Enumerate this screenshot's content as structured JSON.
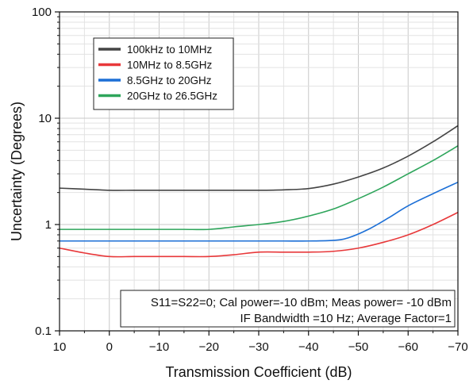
{
  "chart_data": {
    "type": "line",
    "title": "",
    "xlabel": "Transmission Coefficient (dB)",
    "ylabel": "Uncertainty (Degrees)",
    "x_scale": "linear",
    "x_reversed": true,
    "xlim": [
      10,
      -70
    ],
    "x_ticks": [
      10,
      0,
      -10,
      -20,
      -30,
      -40,
      -50,
      -60,
      -70
    ],
    "x_tick_labels": [
      "10",
      "0",
      "−10",
      "−20",
      "−30",
      "−40",
      "−50",
      "−60",
      "−70"
    ],
    "y_scale": "log",
    "ylim": [
      0.1,
      100
    ],
    "y_ticks": [
      0.1,
      1,
      10,
      100
    ],
    "y_tick_labels": [
      "0.1",
      "1",
      "10",
      "100"
    ],
    "grid": true,
    "legend_position": "top-left",
    "series": [
      {
        "name": "100kHz to 10MHz",
        "color": "#444444",
        "x": [
          10,
          5,
          0,
          -5,
          -10,
          -15,
          -20,
          -25,
          -30,
          -35,
          -40,
          -45,
          -50,
          -55,
          -60,
          -65,
          -70
        ],
        "y": [
          2.2,
          2.15,
          2.1,
          2.1,
          2.1,
          2.1,
          2.1,
          2.1,
          2.1,
          2.12,
          2.18,
          2.4,
          2.8,
          3.4,
          4.4,
          6.0,
          8.5
        ]
      },
      {
        "name": "10MHz to 8.5GHz",
        "color": "#e8383a",
        "x": [
          10,
          5,
          0,
          -5,
          -10,
          -15,
          -20,
          -25,
          -30,
          -35,
          -40,
          -45,
          -50,
          -55,
          -60,
          -65,
          -70
        ],
        "y": [
          0.6,
          0.54,
          0.5,
          0.5,
          0.5,
          0.5,
          0.5,
          0.52,
          0.55,
          0.55,
          0.55,
          0.56,
          0.6,
          0.68,
          0.8,
          1.0,
          1.3
        ]
      },
      {
        "name": "8.5GHz to 20GHz",
        "color": "#1c6fd6",
        "x": [
          10,
          5,
          0,
          -5,
          -10,
          -15,
          -20,
          -25,
          -30,
          -35,
          -40,
          -45,
          -48,
          -52,
          -56,
          -60,
          -65,
          -70
        ],
        "y": [
          0.7,
          0.7,
          0.7,
          0.7,
          0.7,
          0.7,
          0.7,
          0.7,
          0.7,
          0.7,
          0.7,
          0.71,
          0.75,
          0.9,
          1.15,
          1.5,
          1.95,
          2.5
        ]
      },
      {
        "name": "20GHz to 26.5GHz",
        "color": "#2ea55b",
        "x": [
          10,
          5,
          0,
          -5,
          -10,
          -15,
          -20,
          -25,
          -30,
          -35,
          -40,
          -45,
          -50,
          -55,
          -60,
          -65,
          -70
        ],
        "y": [
          0.9,
          0.9,
          0.9,
          0.9,
          0.9,
          0.9,
          0.9,
          0.95,
          1.0,
          1.07,
          1.2,
          1.4,
          1.75,
          2.25,
          3.0,
          4.0,
          5.5
        ]
      }
    ],
    "annotation": {
      "line1": "S11=S22=0; Cal power=-10 dBm; Meas power= -10 dBm",
      "line2": "IF Bandwidth =10 Hz; Average Factor=1"
    }
  }
}
